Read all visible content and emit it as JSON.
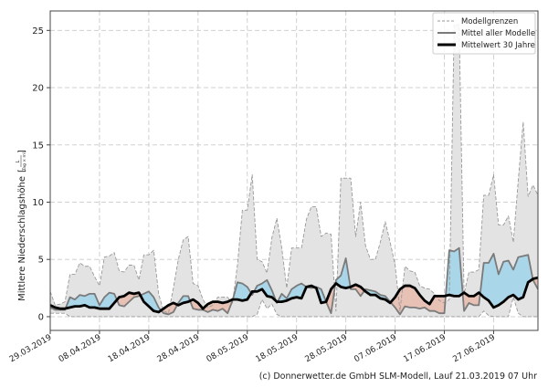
{
  "chart_data": {
    "type": "area",
    "xlabel": "",
    "ylabel": "Mittlere Niederschlagshöhe",
    "ylabel_unit_num": "L",
    "ylabel_unit_den": "Tag × m²",
    "ylim": [
      -1.2,
      26.7
    ],
    "xlim_days": [
      0,
      99
    ],
    "yticks": [
      "0",
      "5",
      "10",
      "15",
      "20",
      "25"
    ],
    "ytick_values": [
      0,
      5,
      10,
      15,
      20,
      25
    ],
    "xticks": [
      "29.03.2019",
      "08.04.2019",
      "18.04.2019",
      "28.04.2019",
      "08.05.2019",
      "18.05.2019",
      "28.05.2019",
      "07.06.2019",
      "17.06.2019",
      "27.06.2019"
    ],
    "xtick_days": [
      0,
      10,
      20,
      30,
      40,
      50,
      60,
      70,
      80,
      90
    ],
    "grid": true,
    "legend_position": "top-right",
    "legend": [
      "Modellgrenzen",
      "Mittel aller Modelle",
      "Mittelwert 30 Jahre"
    ],
    "colors": {
      "band": "#e3e3e3",
      "bound": "#999999",
      "mean": "#7a7a7a",
      "climate": "#000000",
      "above": "#a9d6e8",
      "below": "#e8c1b5"
    },
    "series": [
      {
        "name": "Modellgrenzen oben",
        "values": [
          2.2,
          1.0,
          1.1,
          1.3,
          3.7,
          3.7,
          4.7,
          4.4,
          4.4,
          3.5,
          2.7,
          5.2,
          5.3,
          5.6,
          4.0,
          3.9,
          4.5,
          4.5,
          3.2,
          5.4,
          5.4,
          5.8,
          2.0,
          0.5,
          0.3,
          2.5,
          5.0,
          6.7,
          7.0,
          2.9,
          2.7,
          1.5,
          0.8,
          1.0,
          1.7,
          1.7,
          1.7,
          1.2,
          4.5,
          9.3,
          9.3,
          12.4,
          5.0,
          4.8,
          3.8,
          6.9,
          8.6,
          6.0,
          2.5,
          6.0,
          6.0,
          6.0,
          8.5,
          9.6,
          9.6,
          7.0,
          7.3,
          7.2,
          0.5,
          12.1,
          12.1,
          12.1,
          7.0,
          10.0,
          6.2,
          5.0,
          5.0,
          6.5,
          8.3,
          6.5,
          4.5,
          0.5,
          4.4,
          4.0,
          3.9,
          2.7,
          2.5,
          2.4,
          2.0,
          1.4,
          1.2,
          1.5,
          25.5,
          25.5,
          2.0,
          3.9,
          3.9,
          4.1,
          10.6,
          10.6,
          12.4,
          8.0,
          8.0,
          8.8,
          6.5,
          11.9,
          17.0,
          10.5,
          11.5,
          10.6
        ]
      },
      {
        "name": "Modellgrenzen unten",
        "values": [
          0.3,
          0.3,
          0.3,
          0.3,
          0,
          0,
          0,
          0,
          0,
          0,
          0,
          0,
          0,
          0,
          0,
          0,
          0,
          0,
          0,
          0,
          0,
          0,
          0,
          0,
          0,
          0,
          0,
          0,
          0,
          0,
          0,
          0,
          0,
          0,
          0,
          0,
          0,
          0,
          0,
          0,
          0,
          0,
          0.2,
          1.5,
          0.7,
          1.1,
          0.2,
          0,
          0,
          0,
          0,
          0,
          0,
          0,
          0,
          0,
          0,
          0,
          0,
          0,
          0,
          0,
          0,
          0,
          0,
          0,
          0,
          0,
          0,
          0,
          0,
          0,
          0,
          0,
          0,
          0,
          0,
          0,
          0,
          0,
          0,
          0,
          0,
          0,
          0,
          0,
          0,
          0,
          0.5,
          0.1,
          0,
          0,
          0,
          0,
          1.7,
          0.3,
          0,
          0,
          0,
          0
        ]
      },
      {
        "name": "Mittel aller Modelle",
        "values": [
          0.8,
          0.6,
          0.6,
          0.6,
          1.7,
          1.5,
          1.9,
          1.8,
          2.0,
          2.0,
          1.0,
          1.7,
          2.1,
          2.0,
          1.0,
          0.9,
          1.3,
          1.7,
          1.8,
          2.0,
          2.2,
          1.7,
          0.8,
          0.3,
          0.2,
          0.4,
          1.2,
          1.8,
          1.8,
          0.7,
          0.6,
          0.6,
          0.4,
          0.6,
          0.5,
          0.7,
          0.3,
          1.4,
          3.0,
          2.9,
          2.6,
          1.9,
          2.7,
          2.9,
          3.2,
          2.3,
          1.2,
          2.0,
          1.6,
          2.4,
          2.7,
          2.9,
          2.6,
          2.5,
          2.6,
          2.4,
          1.3,
          0.3,
          3.2,
          3.6,
          5.1,
          2.4,
          2.4,
          1.8,
          2.4,
          2.3,
          2.2,
          1.9,
          1.8,
          1.3,
          0.8,
          0.2,
          0.9,
          0.8,
          0.8,
          0.7,
          0.8,
          0.5,
          0.5,
          0.3,
          0.3,
          5.8,
          5.7,
          6.0,
          0.5,
          1.2,
          1.0,
          1.0,
          4.7,
          4.7,
          5.5,
          3.7,
          4.8,
          4.9,
          4.1,
          5.2,
          5.3,
          5.4,
          3.2,
          2.4
        ]
      },
      {
        "name": "Mittelwert 30 Jahre",
        "values": [
          1.0,
          0.8,
          0.7,
          0.7,
          0.8,
          0.9,
          0.9,
          1.0,
          0.8,
          0.8,
          0.7,
          0.7,
          0.7,
          1.2,
          1.7,
          1.8,
          2.1,
          2.0,
          2.1,
          1.3,
          0.9,
          0.5,
          0.4,
          0.7,
          1.0,
          1.2,
          1.0,
          1.2,
          1.3,
          1.5,
          1.2,
          0.7,
          1.1,
          1.3,
          1.3,
          1.2,
          1.3,
          1.5,
          1.5,
          1.4,
          1.5,
          2.2,
          2.2,
          2.4,
          1.8,
          1.7,
          1.3,
          1.3,
          1.4,
          1.6,
          1.7,
          1.6,
          2.6,
          2.7,
          2.5,
          1.2,
          1.3,
          2.4,
          2.9,
          2.6,
          2.5,
          2.6,
          2.8,
          2.6,
          2.2,
          1.9,
          1.9,
          1.6,
          1.5,
          1.2,
          1.7,
          2.4,
          2.7,
          2.7,
          2.5,
          1.9,
          1.4,
          1.1,
          1.8,
          1.8,
          1.8,
          1.9,
          1.8,
          1.8,
          2.1,
          1.8,
          1.8,
          2.1,
          1.7,
          1.4,
          0.8,
          1.0,
          1.3,
          1.7,
          1.9,
          1.5,
          1.7,
          3.0,
          3.3,
          3.4
        ]
      }
    ]
  },
  "footer": "(c) Donnerwetter.de GmbH SLM-Modell, Lauf 21.03.2019 07 Uhr"
}
